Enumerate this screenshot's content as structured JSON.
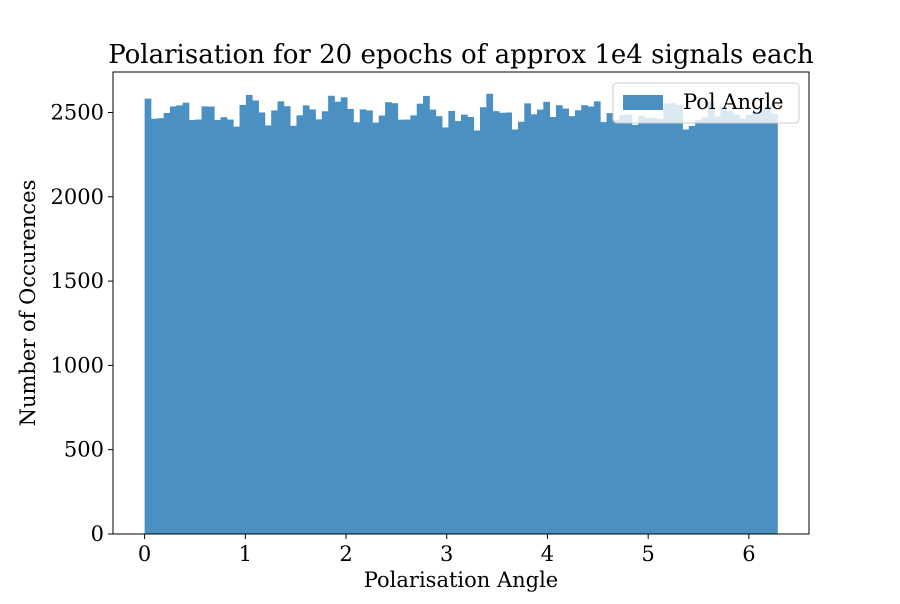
{
  "chart_data": {
    "type": "bar",
    "title": "Polarisation for 20 epochs of approx 1e4 signals each",
    "xlabel": "Polarisation Angle",
    "ylabel": "Number of Occurences",
    "xlim": [
      -0.314,
      6.597
    ],
    "ylim": [
      0,
      2740
    ],
    "xticks": [
      0,
      1,
      2,
      3,
      4,
      5,
      6
    ],
    "yticks": [
      0,
      500,
      1000,
      1500,
      2000,
      2500
    ],
    "grid": false,
    "legend_position": "upper right",
    "bin_range": [
      0,
      6.2832
    ],
    "bar_color": "#4a90c2",
    "series": [
      {
        "name": "Pol Angle",
        "values": [
          2582,
          2463,
          2466,
          2497,
          2536,
          2542,
          2558,
          2455,
          2458,
          2536,
          2535,
          2456,
          2472,
          2458,
          2416,
          2545,
          2604,
          2571,
          2500,
          2423,
          2512,
          2566,
          2537,
          2421,
          2483,
          2542,
          2518,
          2459,
          2507,
          2599,
          2564,
          2590,
          2521,
          2442,
          2518,
          2512,
          2440,
          2482,
          2561,
          2555,
          2457,
          2458,
          2483,
          2552,
          2598,
          2517,
          2478,
          2411,
          2509,
          2449,
          2487,
          2473,
          2393,
          2531,
          2611,
          2508,
          2498,
          2500,
          2399,
          2445,
          2554,
          2489,
          2517,
          2563,
          2473,
          2543,
          2523,
          2478,
          2513,
          2543,
          2535,
          2566,
          2443,
          2496,
          2455,
          2483,
          2488,
          2426,
          2480,
          2466,
          2469,
          2461,
          2553,
          2556,
          2545,
          2399,
          2420,
          2455,
          2471,
          2563,
          2477,
          2535,
          2508,
          2488,
          2462,
          2487,
          2501,
          2523,
          2538,
          2492
        ]
      }
    ]
  }
}
